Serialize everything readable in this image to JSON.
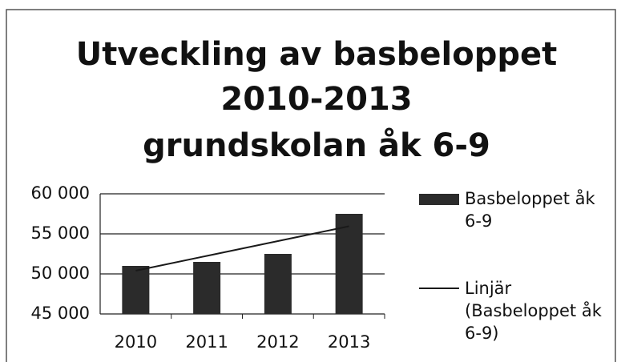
{
  "chart_data": {
    "type": "bar",
    "title": [
      "Utveckling av basbeloppet",
      "2010-2013",
      "grundskolan åk 6-9"
    ],
    "categories": [
      "2010",
      "2011",
      "2012",
      "2013"
    ],
    "series": [
      {
        "name": "Basbeloppet åk 6-9",
        "color": "#2b2b2b",
        "values": [
          51000,
          51500,
          52500,
          57500
        ]
      }
    ],
    "trendline": {
      "name": "Linjär (Basbeloppet åk 6-9)",
      "color": "#1a1a1a",
      "values": [
        50400,
        52250,
        54100,
        55950
      ]
    },
    "ylim": [
      45000,
      60000
    ],
    "yticks": [
      {
        "value": 45000,
        "label": "45 000"
      },
      {
        "value": 50000,
        "label": "50 000"
      },
      {
        "value": 55000,
        "label": "55 000"
      },
      {
        "value": 60000,
        "label": "60 000"
      }
    ],
    "grid": true,
    "legend": "right"
  }
}
